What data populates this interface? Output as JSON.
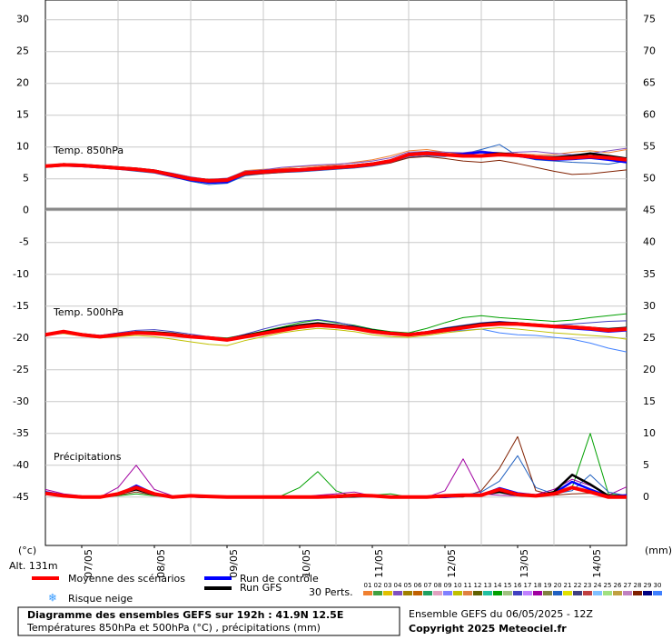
{
  "chart_data": {
    "type": "line",
    "xlim": [
      0,
      192
    ],
    "xticks": [
      {
        "value": 12,
        "label": "07/05"
      },
      {
        "value": 36,
        "label": "08/05"
      },
      {
        "value": 60,
        "label": "09/05"
      },
      {
        "value": 84,
        "label": "10/05"
      },
      {
        "value": 108,
        "label": "11/05"
      },
      {
        "value": 132,
        "label": "12/05"
      },
      {
        "value": 156,
        "label": "13/05"
      },
      {
        "value": 180,
        "label": "14/05"
      }
    ],
    "xgrid": [
      24,
      48,
      72,
      96,
      120,
      144,
      168
    ],
    "x": [
      0,
      6,
      12,
      18,
      24,
      30,
      36,
      42,
      48,
      54,
      60,
      66,
      72,
      78,
      84,
      90,
      96,
      102,
      108,
      114,
      120,
      126,
      132,
      138,
      144,
      150,
      156,
      162,
      168,
      174,
      180,
      186,
      192
    ],
    "ylim": [
      -52.6,
      33.1
    ],
    "yticks": [
      30,
      25,
      20,
      15,
      10,
      5,
      0,
      -5,
      -10,
      -15,
      -20,
      -25,
      -30,
      -35,
      -40,
      -45
    ],
    "y2lim": [
      -7.6,
      78.1
    ],
    "y2ticks": [
      75,
      70,
      65,
      60,
      55,
      50,
      45,
      40,
      35,
      30,
      25,
      20,
      15,
      10,
      5,
      0
    ],
    "ylabel": "(°c)",
    "y2label": "(mm)",
    "altitude": "Alt. 131m",
    "grid": true,
    "legend": {
      "mean": {
        "name": "Moyenne des scénarios",
        "color": "#ff0000"
      },
      "control": {
        "name": "Run de contrôle",
        "color": "#0000ff"
      },
      "gfs": {
        "name": "Run GFS",
        "color": "#000000"
      },
      "snow": "Risque neige",
      "perts": "30 Perts.",
      "members": [
        {
          "name": "01",
          "color": "#f08030"
        },
        {
          "name": "02",
          "color": "#40a040"
        },
        {
          "name": "03",
          "color": "#e0c000"
        },
        {
          "name": "04",
          "color": "#8050c0"
        },
        {
          "name": "05",
          "color": "#a08000"
        },
        {
          "name": "06",
          "color": "#c06000"
        },
        {
          "name": "07",
          "color": "#20a060"
        },
        {
          "name": "08",
          "color": "#e0a0c0"
        },
        {
          "name": "09",
          "color": "#8080ff"
        },
        {
          "name": "10",
          "color": "#c0c000"
        },
        {
          "name": "11",
          "color": "#e08040"
        },
        {
          "name": "12",
          "color": "#606000"
        },
        {
          "name": "13",
          "color": "#20c0a0"
        },
        {
          "name": "14",
          "color": "#00a000"
        },
        {
          "name": "15",
          "color": "#a0c080"
        },
        {
          "name": "16",
          "color": "#4040c0"
        },
        {
          "name": "17",
          "color": "#c080ff"
        },
        {
          "name": "18",
          "color": "#a000a0"
        },
        {
          "name": "19",
          "color": "#808040"
        },
        {
          "name": "20",
          "color": "#2060c0"
        },
        {
          "name": "21",
          "color": "#e0e000"
        },
        {
          "name": "22",
          "color": "#404080"
        },
        {
          "name": "23",
          "color": "#c04040"
        },
        {
          "name": "24",
          "color": "#80c0ff"
        },
        {
          "name": "25",
          "color": "#a0e080"
        },
        {
          "name": "26",
          "color": "#c0a040"
        },
        {
          "name": "27",
          "color": "#c080c0"
        },
        {
          "name": "28",
          "color": "#802000"
        },
        {
          "name": "29",
          "color": "#000080"
        },
        {
          "name": "30",
          "color": "#4080ff"
        }
      ]
    },
    "panels": [
      {
        "label": "Temp. 850hPa",
        "mean": [
          7,
          7.2,
          7.1,
          6.9,
          6.7,
          6.5,
          6.2,
          5.6,
          5.0,
          4.7,
          4.8,
          5.9,
          6.1,
          6.3,
          6.4,
          6.6,
          6.8,
          7.0,
          7.3,
          7.8,
          8.8,
          9.0,
          8.8,
          8.6,
          8.6,
          8.8,
          8.7,
          8.4,
          8.2,
          8.3,
          8.5,
          8.3,
          8.0
        ],
        "control": [
          6.9,
          7.1,
          7,
          6.8,
          6.6,
          6.4,
          6.1,
          5.4,
          4.8,
          4.4,
          4.5,
          5.8,
          6.0,
          6.2,
          6.3,
          6.5,
          6.7,
          6.9,
          7.2,
          7.7,
          8.7,
          8.9,
          8.8,
          8.9,
          9.2,
          9.0,
          8.6,
          8.2,
          8.0,
          8.1,
          8.3,
          8.0,
          7.6
        ],
        "gfs": [
          7,
          7.3,
          7.2,
          7,
          6.8,
          6.6,
          6.3,
          5.7,
          5.1,
          4.8,
          4.9,
          6.0,
          6.2,
          6.4,
          6.5,
          6.7,
          6.9,
          7.1,
          7.4,
          7.9,
          8.9,
          9.1,
          8.9,
          8.7,
          8.7,
          9.0,
          8.8,
          8.5,
          8.4,
          8.6,
          9.0,
          8.6,
          8.2
        ],
        "perturbations": [
          {
            "member": "01",
            "values": [
              7,
              7.4,
              7.2,
              7,
              6.8,
              6.6,
              6.3,
              5.8,
              5.2,
              4.9,
              5,
              6.3,
              6.5,
              6.6,
              6.9,
              7,
              7.2,
              7.6,
              8,
              8.6,
              9.4,
              9.6,
              9.2,
              9,
              9.3,
              9.1,
              8.9,
              8.8,
              8.8,
              9.2,
              9.4,
              9.1,
              9.6
            ]
          },
          {
            "member": "20",
            "values": [
              6.8,
              7,
              6.9,
              6.7,
              6.5,
              6.2,
              5.9,
              5.3,
              4.6,
              4.1,
              4.3,
              5.5,
              5.8,
              6,
              6.1,
              6.3,
              6.5,
              6.7,
              7,
              7.5,
              8.4,
              8.6,
              8.5,
              8.9,
              9.6,
              10.4,
              8.6,
              8,
              7.8,
              7.6,
              7.5,
              7.3,
              7.8
            ]
          },
          {
            "member": "28",
            "values": [
              7.1,
              7.2,
              7,
              6.8,
              6.6,
              6.3,
              6.0,
              5.5,
              4.9,
              4.6,
              4.7,
              5.6,
              5.8,
              6,
              6.2,
              6.4,
              6.6,
              6.8,
              7.1,
              7.5,
              8.3,
              8.5,
              8.2,
              7.8,
              7.6,
              7.9,
              7.4,
              6.8,
              6.2,
              5.7,
              5.8,
              6.1,
              6.4
            ]
          },
          {
            "member": "04",
            "values": [
              7,
              7.3,
              7.3,
              7.1,
              6.9,
              6.6,
              6.4,
              5.9,
              5.3,
              4.9,
              5.1,
              6.2,
              6.4,
              6.8,
              7.0,
              7.2,
              7.3,
              7.5,
              7.8,
              8.3,
              9.2,
              9.3,
              9.2,
              9.1,
              9.4,
              9.0,
              9.2,
              9.3,
              9.0,
              8.8,
              9.0,
              9.4,
              9.8
            ]
          }
        ]
      },
      {
        "label": "Temp. 500hPa",
        "mean": [
          -19.5,
          -19,
          -19.5,
          -19.8,
          -19.5,
          -19.2,
          -19.3,
          -19.5,
          -19.8,
          -20,
          -20.3,
          -19.8,
          -19.3,
          -18.8,
          -18.3,
          -18,
          -18.2,
          -18.5,
          -19,
          -19.3,
          -19.5,
          -19.2,
          -18.8,
          -18.4,
          -18,
          -17.8,
          -17.8,
          -18,
          -18.2,
          -18.3,
          -18.5,
          -18.8,
          -18.6
        ],
        "control": [
          -19.4,
          -19,
          -19.4,
          -19.7,
          -19.4,
          -19.1,
          -19.2,
          -19.4,
          -19.7,
          -19.9,
          -20.2,
          -19.7,
          -19.2,
          -18.6,
          -18.1,
          -17.8,
          -18.0,
          -18.4,
          -18.9,
          -19.2,
          -19.4,
          -19.1,
          -18.7,
          -18.3,
          -17.9,
          -17.6,
          -17.7,
          -18.0,
          -18.3,
          -18.5,
          -18.7,
          -19.0,
          -18.8
        ],
        "gfs": [
          -19.5,
          -19.1,
          -19.4,
          -19.8,
          -19.5,
          -19.1,
          -19.1,
          -19.3,
          -19.7,
          -20,
          -20.2,
          -19.6,
          -19.1,
          -18.5,
          -18,
          -17.7,
          -18,
          -18.3,
          -18.8,
          -19.2,
          -19.4,
          -19.1,
          -18.6,
          -18.2,
          -17.8,
          -17.6,
          -17.7,
          -17.9,
          -18.1,
          -18.2,
          -18.4,
          -18.6,
          -18.4
        ],
        "perturbations": [
          {
            "member": "14",
            "values": [
              -19.5,
              -19.2,
              -19.6,
              -19.7,
              -19.4,
              -19,
              -19,
              -19.3,
              -19.6,
              -19.8,
              -20,
              -19.5,
              -18.9,
              -18.3,
              -17.6,
              -17.2,
              -17.6,
              -18,
              -18.6,
              -19,
              -19.2,
              -18.5,
              -17.6,
              -16.8,
              -16.5,
              -16.8,
              -17,
              -17.2,
              -17.4,
              -17.2,
              -16.8,
              -16.5,
              -16.2
            ]
          },
          {
            "member": "30",
            "values": [
              -19.4,
              -19.1,
              -19.5,
              -19.8,
              -19.6,
              -19.3,
              -19.4,
              -19.6,
              -19.9,
              -20.1,
              -20.4,
              -19.9,
              -19.4,
              -18.9,
              -18.5,
              -18.2,
              -18.4,
              -18.7,
              -19.2,
              -19.5,
              -19.6,
              -19.4,
              -19,
              -18.8,
              -18.6,
              -19.2,
              -19.5,
              -19.6,
              -19.9,
              -20.2,
              -20.8,
              -21.6,
              -22.2
            ]
          },
          {
            "member": "16",
            "values": [
              -19.6,
              -19,
              -19.3,
              -19.6,
              -19.2,
              -18.8,
              -18.7,
              -19,
              -19.4,
              -19.8,
              -20.1,
              -19.4,
              -18.6,
              -17.9,
              -17.4,
              -17.1,
              -17.5,
              -18.1,
              -18.7,
              -19.1,
              -19.3,
              -19,
              -18.4,
              -18,
              -17.6,
              -17.4,
              -17.6,
              -17.9,
              -18,
              -17.8,
              -17.6,
              -17.4,
              -17.3
            ]
          },
          {
            "member": "10",
            "values": [
              -19.5,
              -19.3,
              -19.7,
              -20,
              -19.8,
              -19.6,
              -19.8,
              -20.2,
              -20.6,
              -21,
              -21.2,
              -20.4,
              -19.8,
              -19.2,
              -18.8,
              -18.5,
              -18.7,
              -19,
              -19.5,
              -19.8,
              -19.9,
              -19.6,
              -19.2,
              -18.9,
              -18.6,
              -18.4,
              -18.6,
              -18.9,
              -19.2,
              -19.4,
              -19.6,
              -19.8,
              -20.2
            ]
          }
        ]
      },
      {
        "label": "Précipitations",
        "axis": "y2",
        "mean": [
          0.6,
          0.2,
          0,
          0,
          0.5,
          1.5,
          0.5,
          0,
          0.2,
          0.1,
          0,
          0,
          0,
          0,
          0,
          0,
          0.1,
          0.3,
          0.2,
          0,
          0,
          0,
          0.2,
          0.3,
          0.3,
          1.2,
          0.4,
          0.2,
          0.5,
          1.5,
          0.8,
          0,
          0
        ],
        "control": [
          0.8,
          0.3,
          0,
          0,
          0.4,
          1.8,
          0.5,
          0,
          0.1,
          0,
          0,
          0,
          0,
          0,
          0,
          0,
          0,
          0.2,
          0.3,
          0,
          0,
          0,
          0,
          0.2,
          0.3,
          1.4,
          0.6,
          0.3,
          0.6,
          2.4,
          1.2,
          0.1,
          0.3
        ],
        "gfs": [
          0.7,
          0.2,
          0,
          0,
          0.5,
          1.2,
          0.4,
          0,
          0.1,
          0,
          0,
          0,
          0,
          0,
          0,
          0,
          0,
          0.1,
          0.2,
          0,
          0,
          0,
          0.1,
          0.2,
          0.4,
          0.8,
          0.3,
          0.2,
          0.8,
          3.5,
          2,
          0.2,
          0.1
        ],
        "perturbations": [
          {
            "member": "14",
            "values": [
              0.8,
              0.3,
              0,
              0,
              0.2,
              0.5,
              0.2,
              0,
              0,
              0,
              0,
              0,
              0,
              0.2,
              1.5,
              4,
              1,
              0,
              0.3,
              0.5,
              0,
              0,
              0,
              0.2,
              0.5,
              1,
              0.5,
              0.2,
              0.3,
              1.5,
              10,
              0.5,
              0.2
            ]
          },
          {
            "member": "28",
            "values": [
              0.5,
              0.2,
              0,
              0,
              0.3,
              0.8,
              0.3,
              0,
              0,
              0,
              0,
              0,
              0,
              0,
              0,
              0,
              0,
              0,
              0.2,
              0.1,
              0,
              0,
              0,
              0,
              1,
              4.5,
              9.5,
              1,
              0.3,
              0.5,
              0.6,
              0.2,
              0
            ]
          },
          {
            "member": "18",
            "values": [
              1.2,
              0.5,
              0.2,
              0,
              1.5,
              5,
              1.2,
              0.2,
              0,
              0.2,
              0.1,
              0,
              0,
              0,
              0,
              0.3,
              0.5,
              0.8,
              0.2,
              0,
              0,
              0,
              1,
              6,
              0.5,
              0.3,
              0.2,
              0.4,
              1.2,
              2.8,
              1.8,
              0.3,
              1.6
            ]
          },
          {
            "member": "20",
            "values": [
              0.6,
              0.2,
              0,
              0,
              0.4,
              1.2,
              0.4,
              0,
              0,
              0,
              0,
              0,
              0,
              0,
              0,
              0,
              0,
              0,
              0,
              0,
              0,
              0,
              0,
              0.3,
              0.8,
              2.5,
              6.5,
              1.5,
              0.5,
              1,
              3.5,
              0.8,
              0.2
            ]
          }
        ]
      }
    ],
    "footer": {
      "title": "Diagramme des ensembles GEFS sur 192h : 41.9N 12.5E",
      "subtitle": "Températures 850hPa et 500hPa (°C) , précipitations (mm)",
      "run": "Ensemble GEFS du 06/05/2025 - 12Z",
      "copyright": "Copyright 2025 Meteociel.fr"
    }
  }
}
